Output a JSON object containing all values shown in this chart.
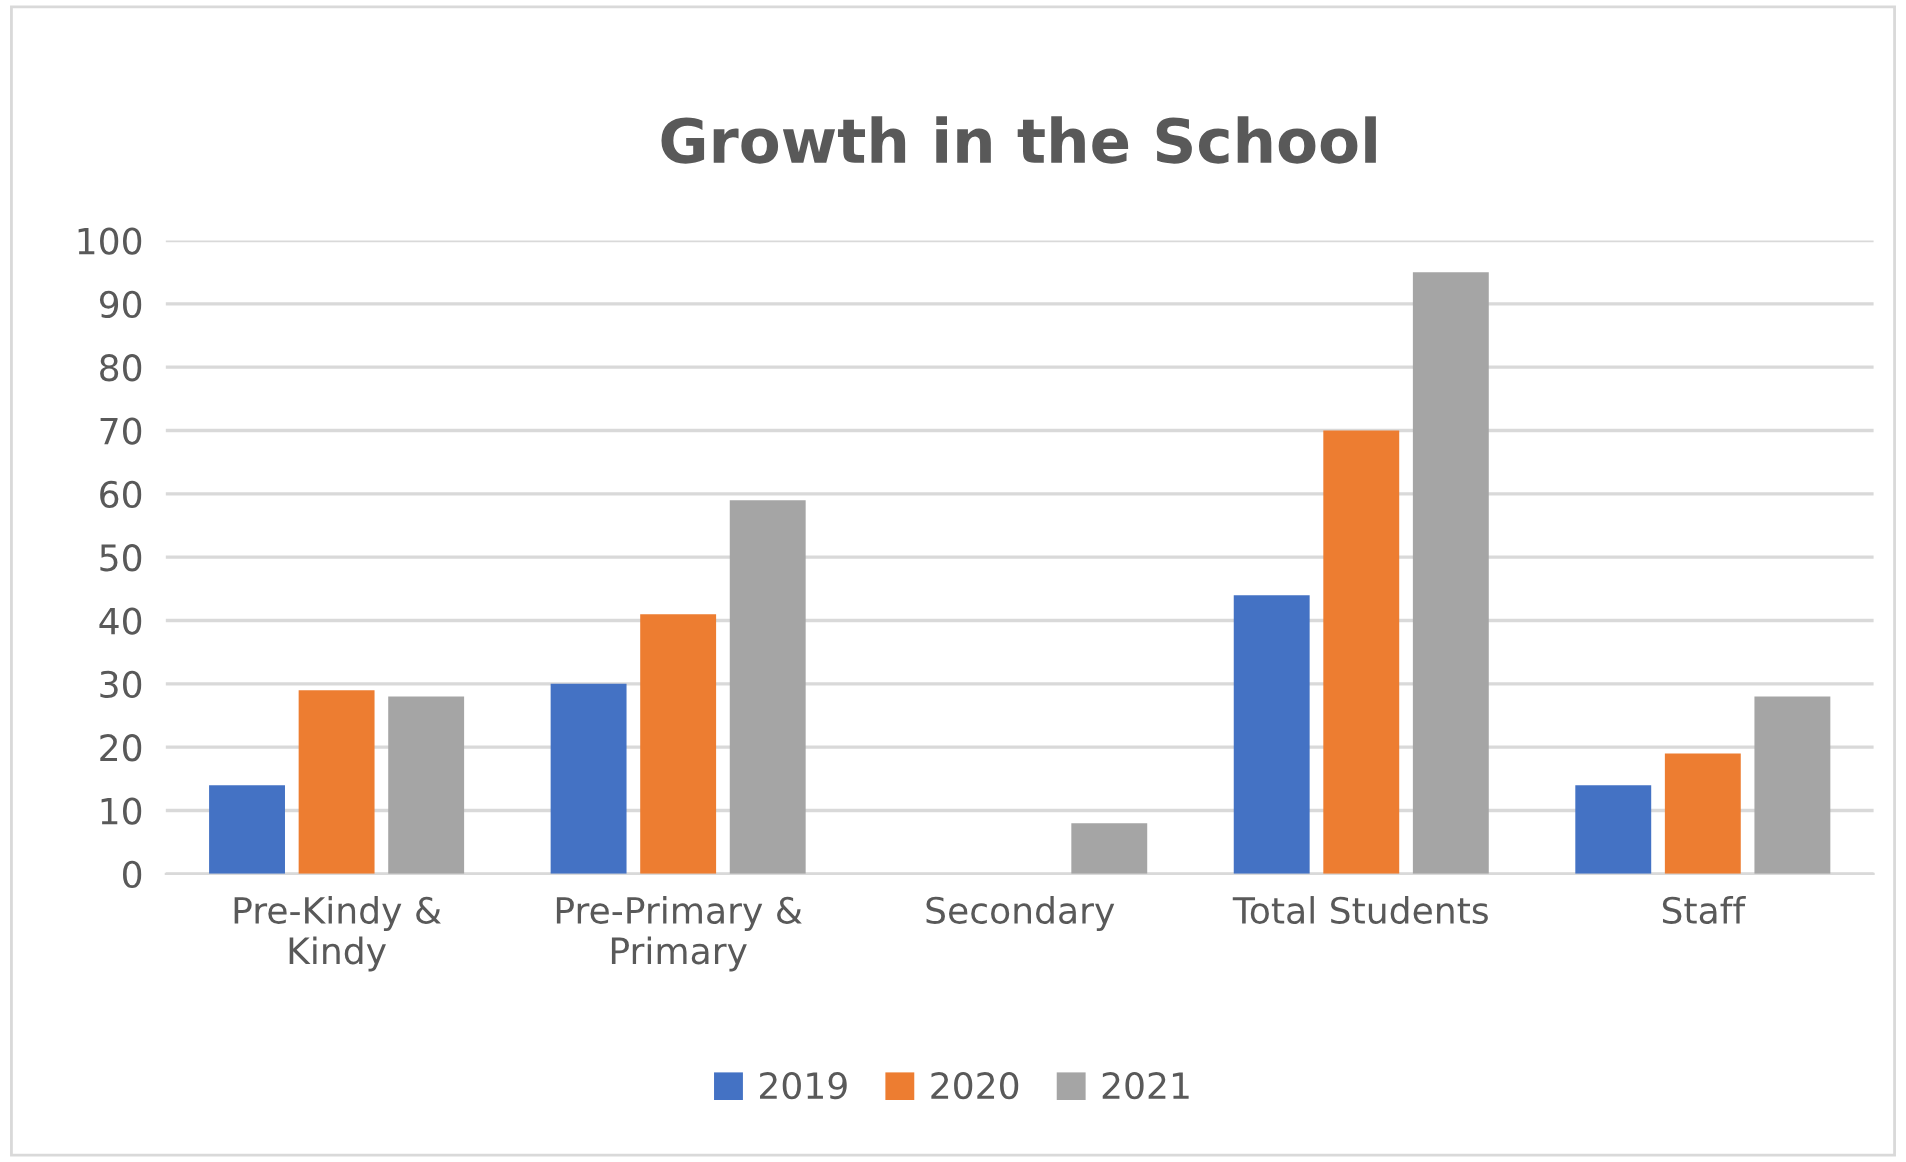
{
  "chart_data": {
    "type": "bar",
    "title": "Growth in the School",
    "categories": [
      "Pre-Kindy &\nKindy",
      "Pre-Primary &\nPrimary",
      "Secondary",
      "Total Students",
      "Staff"
    ],
    "series": [
      {
        "name": "2019",
        "color": "#4472c4",
        "values": [
          14,
          30,
          0,
          44,
          14
        ]
      },
      {
        "name": "2020",
        "color": "#ed7d31",
        "values": [
          29,
          41,
          0,
          70,
          19
        ]
      },
      {
        "name": "2021",
        "color": "#a5a5a5",
        "values": [
          28,
          59,
          8,
          95,
          28
        ]
      }
    ],
    "ylim": [
      0,
      100
    ],
    "yticks": [
      0,
      10,
      20,
      30,
      40,
      50,
      60,
      70,
      80,
      90,
      100
    ],
    "grid": "y",
    "legend": "bottom"
  }
}
